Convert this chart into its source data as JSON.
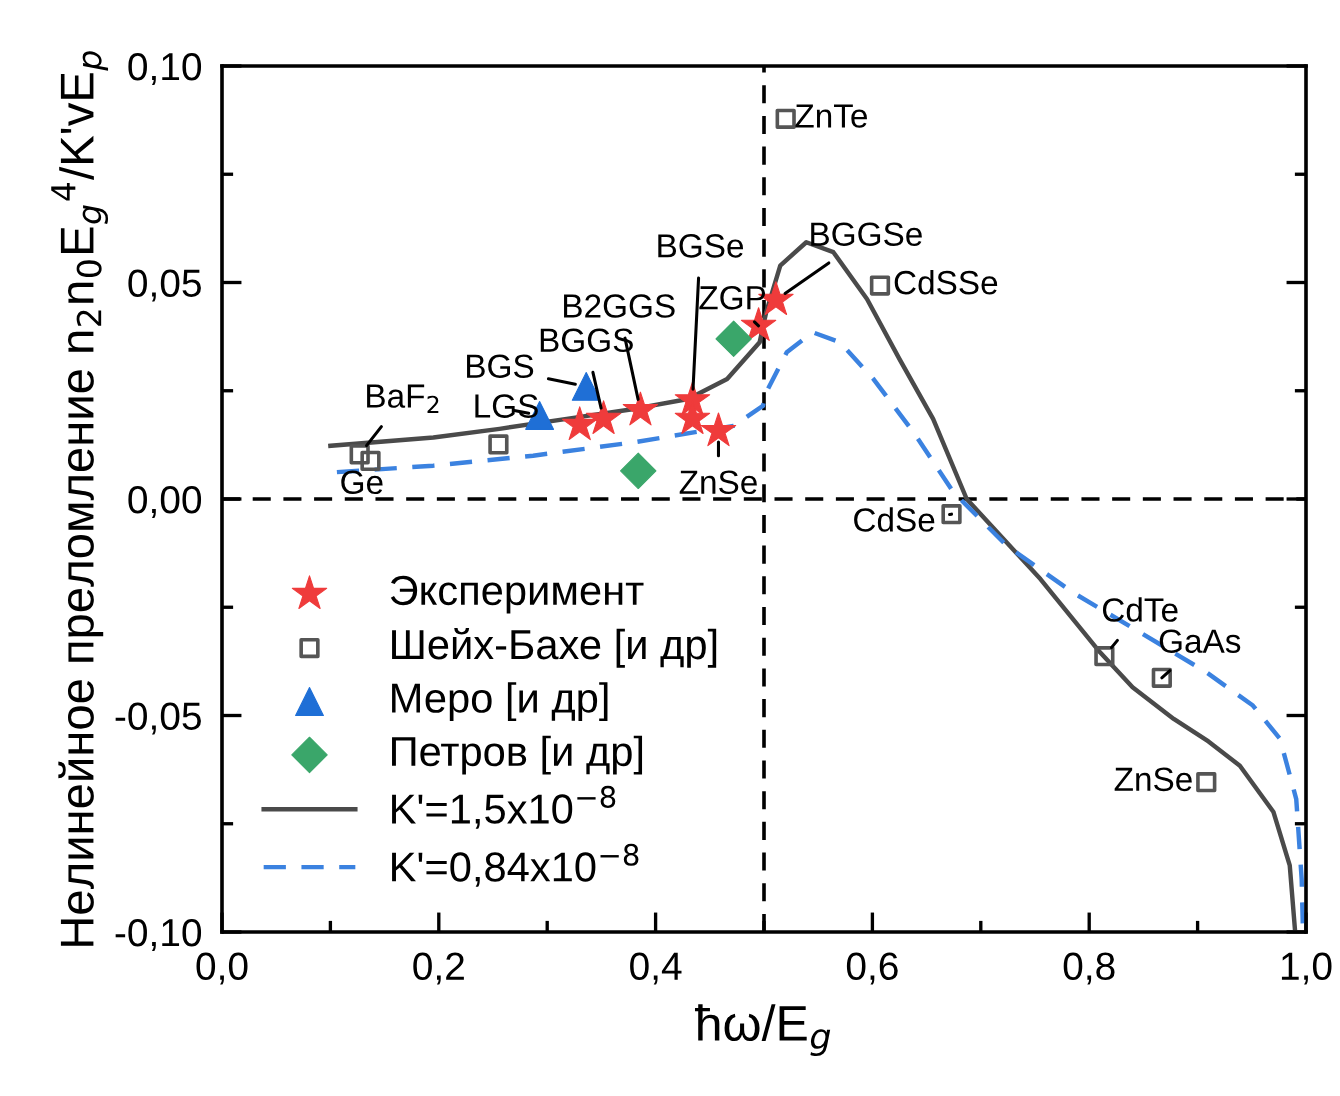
{
  "chart_data": {
    "type": "line",
    "xlabel": "ħω/E$_{g}$",
    "ylabel": "Нелинейное преломление n$_{2}$n$_{0}$E$_{g}$$^{4}$/K'vE$_{p}$",
    "xlim": [
      0,
      1
    ],
    "ylim": [
      -0.1,
      0.1
    ],
    "xticks": [
      {
        "value": 0,
        "label": "0,0"
      },
      {
        "value": 0.1,
        "label": null
      },
      {
        "value": 0.2,
        "label": "0,2"
      },
      {
        "value": 0.3,
        "label": null
      },
      {
        "value": 0.4,
        "label": "0,4"
      },
      {
        "value": 0.5,
        "label": null
      },
      {
        "value": 0.6,
        "label": "0,6"
      },
      {
        "value": 0.7,
        "label": null
      },
      {
        "value": 0.8,
        "label": "0,8"
      },
      {
        "value": 0.9,
        "label": null
      },
      {
        "value": 1.0,
        "label": "1,0"
      }
    ],
    "yticks": [
      {
        "value": -0.1,
        "label": "-0,10"
      },
      {
        "value": -0.075,
        "label": null
      },
      {
        "value": -0.05,
        "label": "-0,05"
      },
      {
        "value": -0.025,
        "label": null
      },
      {
        "value": 0,
        "label": "0,00"
      },
      {
        "value": 0.025,
        "label": null
      },
      {
        "value": 0.05,
        "label": "0,05"
      },
      {
        "value": 0.075,
        "label": null
      },
      {
        "value": 0.1,
        "label": "0,10"
      }
    ],
    "legend": "bottom left",
    "grid": false,
    "ref_lines": [
      {
        "axis": "x",
        "value": 0.5,
        "color": "#000000",
        "line_style": "dashed"
      },
      {
        "axis": "y",
        "value": 0,
        "color": "#000000",
        "line_style": "dashed"
      }
    ],
    "series": [
      {
        "name": "Эксперимент",
        "type": "scatter",
        "marker": "star",
        "color": "#ef3b3b",
        "x": [
          0.33,
          0.352,
          0.386,
          0.434,
          0.434,
          0.458,
          0.495,
          0.511
        ],
        "values": [
          0.0171,
          0.0185,
          0.0205,
          0.0228,
          0.0185,
          0.0157,
          0.04,
          0.046
        ]
      },
      {
        "name": "Шейх-Бахе [и др]",
        "type": "scatter",
        "marker": "square",
        "color": "#555555",
        "x": [
          0.127,
          0.137,
          0.255,
          0.52,
          0.607,
          0.673,
          0.814,
          0.867,
          0.908
        ],
        "values": [
          0.0103,
          0.0088,
          0.0126,
          0.0878,
          0.0493,
          -0.0035,
          -0.0363,
          -0.0413,
          -0.0654
        ]
      },
      {
        "name": "Меро [и др]",
        "type": "scatter",
        "marker": "triangle",
        "color": "#1f6fd6",
        "x": [
          0.293,
          0.336
        ],
        "values": [
          0.0193,
          0.026
        ]
      },
      {
        "name": "Петров [и др]",
        "type": "scatter",
        "marker": "diamond",
        "color": "#3aa66a",
        "x": [
          0.472,
          0.384
        ],
        "values": [
          0.037,
          0.0065
        ]
      },
      {
        "name": "K'=1,5x10$^{−8}$",
        "line_style": "solid",
        "color": "#4a4a4a",
        "x": [
          0.1,
          0.195,
          0.256,
          0.318,
          0.38,
          0.43,
          0.466,
          0.496,
          0.502,
          0.515,
          0.539,
          0.564,
          0.595,
          0.625,
          0.656,
          0.687,
          0.755,
          0.81,
          0.84,
          0.878,
          0.91,
          0.939,
          0.97,
          0.985,
          0.99
        ],
        "values": [
          0.0123,
          0.0142,
          0.0162,
          0.0185,
          0.0208,
          0.0231,
          0.0277,
          0.0362,
          0.0431,
          0.0539,
          0.0593,
          0.057,
          0.0462,
          0.0323,
          0.0185,
          0.0,
          -0.0185,
          -0.0354,
          -0.0435,
          -0.0508,
          -0.056,
          -0.0616,
          -0.0723,
          -0.0846,
          -0.1
        ]
      },
      {
        "name": "K'=0,84x10$^{−8}$",
        "line_style": "dashed",
        "color": "#3b82e0",
        "x": [
          0.106,
          0.195,
          0.287,
          0.38,
          0.472,
          0.499,
          0.502,
          0.521,
          0.545,
          0.57,
          0.601,
          0.638,
          0.675,
          0.724,
          0.785,
          0.847,
          0.908,
          0.951,
          0.976,
          0.991,
          0.996,
          0.997
        ],
        "values": [
          0.0062,
          0.0077,
          0.01,
          0.0131,
          0.0169,
          0.0215,
          0.0246,
          0.0339,
          0.0385,
          0.0362,
          0.0277,
          0.0154,
          0.0015,
          -0.0108,
          -0.0216,
          -0.0308,
          -0.04,
          -0.0477,
          -0.0554,
          -0.0693,
          -0.0878,
          -0.098
        ]
      }
    ],
    "annotations": [
      {
        "text": "ZnTe",
        "x": 0.52,
        "y": 0.0878
      },
      {
        "text": "BGGSe",
        "x": 0.511,
        "y": 0.046
      },
      {
        "text": "CdSSe",
        "x": 0.607,
        "y": 0.0493
      },
      {
        "text": "ZGP",
        "x": 0.495,
        "y": 0.04
      },
      {
        "text": "BGSe",
        "x": 0.434,
        "y": 0.0228
      },
      {
        "text": "B2GGS",
        "x": 0.386,
        "y": 0.0205
      },
      {
        "text": "BGGS",
        "x": 0.352,
        "y": 0.0185
      },
      {
        "text": "BGS",
        "x": 0.336,
        "y": 0.026
      },
      {
        "text": "LGS",
        "x": 0.293,
        "y": 0.0193
      },
      {
        "text": "BaF$_{2}$",
        "x": 0.127,
        "y": 0.0103
      },
      {
        "text": "Ge",
        "x": 0.137,
        "y": 0.0088
      },
      {
        "text": "ZnSe",
        "x": 0.458,
        "y": 0.0157
      },
      {
        "text": "CdSe",
        "x": 0.673,
        "y": -0.0035
      },
      {
        "text": "CdTe",
        "x": 0.814,
        "y": -0.0363
      },
      {
        "text": "GaAs",
        "x": 0.867,
        "y": -0.0413
      },
      {
        "text": "ZnSe",
        "x": 0.908,
        "y": -0.0654
      }
    ]
  }
}
